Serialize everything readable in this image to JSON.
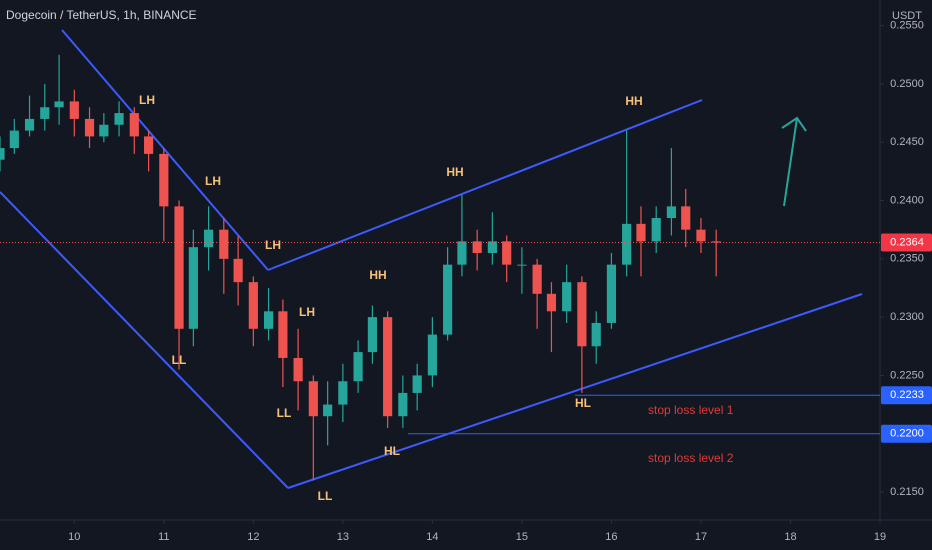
{
  "chart_data": {
    "type": "candlestick",
    "title": "Dogecoin / TetherUS, 1h, BINANCE",
    "y_axis_unit": "USDT",
    "up_color": "#26a69a",
    "down_color": "#ef5350",
    "line_color": "#2962ff",
    "grid": false,
    "x": [
      9.17,
      9.33,
      9.5,
      9.67,
      9.83,
      10,
      10.17,
      10.33,
      10.5,
      10.67,
      10.83,
      11,
      11.17,
      11.33,
      11.5,
      11.67,
      11.83,
      12,
      12.17,
      12.33,
      12.5,
      12.67,
      12.83,
      13,
      13.17,
      13.33,
      13.5,
      13.67,
      13.83,
      14,
      14.17,
      14.33,
      14.5,
      14.67,
      14.83,
      15,
      15.17,
      15.33,
      15.5,
      15.67,
      15.83,
      16,
      16.17,
      16.33,
      16.5,
      16.67,
      16.83,
      17,
      17.17
    ],
    "open": [
      0.2435,
      0.2445,
      0.246,
      0.247,
      0.248,
      0.2485,
      0.247,
      0.2455,
      0.2465,
      0.2475,
      0.2455,
      0.244,
      0.2395,
      0.229,
      0.236,
      0.2375,
      0.235,
      0.233,
      0.229,
      0.2305,
      0.2265,
      0.2245,
      0.2215,
      0.2225,
      0.2245,
      0.227,
      0.23,
      0.2215,
      0.2235,
      0.225,
      0.2285,
      0.2345,
      0.2365,
      0.2355,
      0.2365,
      0.2345,
      0.2345,
      0.232,
      0.2305,
      0.233,
      0.2275,
      0.2295,
      0.2345,
      0.238,
      0.2365,
      0.2385,
      0.2395,
      0.2375,
      0.2365
    ],
    "high": [
      0.2455,
      0.247,
      0.249,
      0.25,
      0.2525,
      0.2495,
      0.248,
      0.2475,
      0.2485,
      0.248,
      0.246,
      0.2445,
      0.24,
      0.2375,
      0.2395,
      0.2385,
      0.237,
      0.2335,
      0.2325,
      0.2315,
      0.229,
      0.225,
      0.2245,
      0.226,
      0.228,
      0.231,
      0.2305,
      0.225,
      0.226,
      0.23,
      0.236,
      0.2405,
      0.2375,
      0.239,
      0.237,
      0.236,
      0.235,
      0.233,
      0.2345,
      0.2335,
      0.2305,
      0.2355,
      0.246,
      0.2395,
      0.2395,
      0.2445,
      0.241,
      0.2385,
      0.2375
    ],
    "low": [
      0.2425,
      0.244,
      0.2455,
      0.246,
      0.2465,
      0.2455,
      0.2445,
      0.245,
      0.2455,
      0.244,
      0.2425,
      0.2365,
      0.2255,
      0.2275,
      0.234,
      0.232,
      0.231,
      0.2275,
      0.228,
      0.224,
      0.222,
      0.216,
      0.219,
      0.221,
      0.2235,
      0.226,
      0.2205,
      0.2205,
      0.222,
      0.224,
      0.228,
      0.2335,
      0.234,
      0.2345,
      0.233,
      0.232,
      0.229,
      0.227,
      0.2295,
      0.2235,
      0.226,
      0.229,
      0.2335,
      0.2335,
      0.2355,
      0.237,
      0.236,
      0.2355,
      0.2335
    ],
    "close": [
      0.2445,
      0.246,
      0.247,
      0.248,
      0.2485,
      0.247,
      0.2455,
      0.2465,
      0.2475,
      0.2455,
      0.244,
      0.2395,
      0.229,
      0.236,
      0.2375,
      0.235,
      0.233,
      0.229,
      0.2305,
      0.2265,
      0.2245,
      0.2215,
      0.2225,
      0.2245,
      0.227,
      0.23,
      0.2215,
      0.2235,
      0.225,
      0.2285,
      0.2345,
      0.2365,
      0.2355,
      0.2365,
      0.2345,
      0.2345,
      0.232,
      0.2305,
      0.233,
      0.2275,
      0.2295,
      0.2345,
      0.238,
      0.2365,
      0.2385,
      0.2395,
      0.2375,
      0.2365,
      0.2364
    ],
    "last_price": 0.2364,
    "levels": [
      {
        "value": 0.2233,
        "label": "0.2233",
        "name": "stop loss level 1"
      },
      {
        "value": 0.22,
        "label": "0.2200",
        "name": "stop loss level 2"
      }
    ],
    "annotations": [
      "LH",
      "LH",
      "LH",
      "LH",
      "LL",
      "LL",
      "LL",
      "HH",
      "HH",
      "HH",
      "HL",
      "HL"
    ],
    "xlim": [
      9.17,
      19
    ],
    "xticks": [
      10,
      11,
      12,
      13,
      14,
      15,
      16,
      17,
      18,
      19
    ],
    "ylim": [
      0.2126,
      0.2572
    ],
    "yticks": [
      {
        "value": 0.215,
        "label": "0.2150"
      },
      {
        "value": 0.22,
        "label": "0.2200"
      },
      {
        "value": 0.225,
        "label": "0.2250"
      },
      {
        "value": 0.23,
        "label": "0.2300"
      },
      {
        "value": 0.235,
        "label": "0.2350"
      },
      {
        "value": 0.24,
        "label": "0.2400"
      },
      {
        "value": 0.245,
        "label": "0.2450"
      },
      {
        "value": 0.25,
        "label": "0.2500"
      },
      {
        "value": 0.255,
        "label": "0.2550"
      }
    ]
  }
}
